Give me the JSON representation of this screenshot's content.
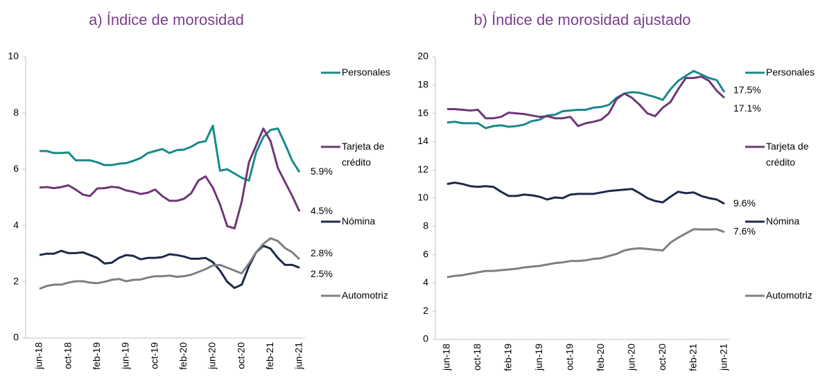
{
  "chart_data": [
    {
      "type": "line",
      "title": "a) Índice de morosidad",
      "categories": [
        "jun-18",
        null,
        null,
        null,
        "oct-18",
        null,
        null,
        null,
        "feb-19",
        null,
        null,
        null,
        "jun-19",
        null,
        null,
        null,
        "oct-19",
        null,
        null,
        null,
        "feb-20",
        null,
        null,
        null,
        "jun-20",
        null,
        null,
        null,
        "oct-20",
        null,
        null,
        null,
        "feb-21",
        null,
        null,
        null,
        "jun-21"
      ],
      "ylim": [
        0,
        10
      ],
      "yticks": [
        0,
        2,
        4,
        6,
        8,
        10
      ],
      "series": [
        {
          "name": "Personales",
          "color": "#17898a",
          "values": [
            6.65,
            6.65,
            6.58,
            6.58,
            6.6,
            6.32,
            6.32,
            6.32,
            6.25,
            6.15,
            6.15,
            6.2,
            6.22,
            6.3,
            6.4,
            6.58,
            6.65,
            6.72,
            6.58,
            6.68,
            6.7,
            6.8,
            6.95,
            7.0,
            7.55,
            5.95,
            6.0,
            5.85,
            5.7,
            5.6,
            6.6,
            7.15,
            7.4,
            7.45,
            6.9,
            6.3,
            5.9
          ],
          "value_labels": [
            null,
            null,
            null,
            null,
            null,
            null,
            null,
            null,
            null,
            null,
            null,
            null,
            null,
            null,
            null,
            null,
            null,
            null,
            null,
            null,
            null,
            null,
            null,
            null,
            null,
            null,
            null,
            null,
            null,
            null,
            null,
            null,
            null,
            null,
            null,
            null,
            "5.9%"
          ]
        },
        {
          "name": "Tarjeta de crédito",
          "color": "#6e3775",
          "values": [
            5.35,
            5.37,
            5.33,
            5.37,
            5.43,
            5.28,
            5.1,
            5.05,
            5.32,
            5.33,
            5.38,
            5.35,
            5.25,
            5.2,
            5.12,
            5.17,
            5.28,
            5.05,
            4.88,
            4.88,
            4.95,
            5.15,
            5.6,
            5.75,
            5.35,
            4.75,
            3.98,
            3.9,
            4.85,
            6.25,
            6.85,
            7.45,
            7.0,
            6.05,
            5.55,
            5.05,
            4.5
          ],
          "value_labels": [
            null,
            null,
            null,
            null,
            null,
            null,
            null,
            null,
            null,
            null,
            null,
            null,
            null,
            null,
            null,
            null,
            null,
            null,
            null,
            null,
            null,
            null,
            null,
            null,
            null,
            null,
            null,
            null,
            null,
            null,
            null,
            null,
            null,
            null,
            null,
            null,
            "4.5%"
          ]
        },
        {
          "name": "Nómina",
          "color": "#1c2a47",
          "values": [
            2.95,
            3.0,
            3.0,
            3.1,
            3.02,
            3.02,
            3.05,
            2.95,
            2.85,
            2.65,
            2.68,
            2.85,
            2.95,
            2.92,
            2.8,
            2.85,
            2.85,
            2.88,
            2.98,
            2.95,
            2.9,
            2.82,
            2.82,
            2.85,
            2.7,
            2.4,
            2.0,
            1.78,
            1.9,
            2.55,
            3.05,
            3.28,
            3.18,
            2.85,
            2.6,
            2.6,
            2.5
          ],
          "value_labels": [
            null,
            null,
            null,
            null,
            null,
            null,
            null,
            null,
            null,
            null,
            null,
            null,
            null,
            null,
            null,
            null,
            null,
            null,
            null,
            null,
            null,
            null,
            null,
            null,
            null,
            null,
            null,
            null,
            null,
            null,
            null,
            null,
            null,
            null,
            null,
            null,
            "2.5%"
          ]
        },
        {
          "name": "Automotriz",
          "color": "#7f7f7f",
          "values": [
            1.75,
            1.85,
            1.9,
            1.9,
            1.97,
            2.02,
            2.02,
            1.97,
            1.95,
            2.0,
            2.07,
            2.1,
            2.02,
            2.07,
            2.08,
            2.15,
            2.2,
            2.2,
            2.22,
            2.18,
            2.2,
            2.25,
            2.35,
            2.45,
            2.58,
            2.6,
            2.5,
            2.4,
            2.3,
            2.65,
            3.05,
            3.35,
            3.55,
            3.45,
            3.2,
            3.05,
            2.8
          ],
          "value_labels": [
            null,
            null,
            null,
            null,
            null,
            null,
            null,
            null,
            null,
            null,
            null,
            null,
            null,
            null,
            null,
            null,
            null,
            null,
            null,
            null,
            null,
            null,
            null,
            null,
            null,
            null,
            null,
            null,
            null,
            null,
            null,
            null,
            null,
            null,
            null,
            null,
            "2.8%"
          ]
        }
      ]
    },
    {
      "type": "line",
      "title": "b) Índice de morosidad ajustado",
      "categories": [
        "jun-18",
        null,
        null,
        null,
        "oct-18",
        null,
        null,
        null,
        "feb-19",
        null,
        null,
        null,
        "jun-19",
        null,
        null,
        null,
        "oct-19",
        null,
        null,
        null,
        "feb-20",
        null,
        null,
        null,
        "jun-20",
        null,
        null,
        null,
        "oct-20",
        null,
        null,
        null,
        "feb-21",
        null,
        null,
        null,
        "jun-21"
      ],
      "ylim": [
        0,
        20
      ],
      "yticks": [
        0,
        2,
        4,
        6,
        8,
        10,
        12,
        14,
        16,
        18,
        20
      ],
      "series": [
        {
          "name": "Personales",
          "color": "#17898a",
          "values": [
            15.35,
            15.4,
            15.3,
            15.3,
            15.3,
            14.95,
            15.1,
            15.15,
            15.05,
            15.1,
            15.2,
            15.45,
            15.55,
            15.85,
            15.9,
            16.15,
            16.2,
            16.25,
            16.25,
            16.4,
            16.45,
            16.6,
            17.1,
            17.4,
            17.5,
            17.45,
            17.3,
            17.15,
            16.95,
            17.7,
            18.3,
            18.65,
            19.0,
            18.75,
            18.5,
            18.35,
            17.5
          ],
          "value_labels": [
            null,
            null,
            null,
            null,
            null,
            null,
            null,
            null,
            null,
            null,
            null,
            null,
            null,
            null,
            null,
            null,
            null,
            null,
            null,
            null,
            null,
            null,
            null,
            null,
            null,
            null,
            null,
            null,
            null,
            null,
            null,
            null,
            null,
            null,
            null,
            null,
            "17.5%"
          ]
        },
        {
          "name": "Tarjeta de crédito",
          "color": "#6e3775",
          "values": [
            16.3,
            16.3,
            16.25,
            16.2,
            16.25,
            15.65,
            15.65,
            15.75,
            16.05,
            16.0,
            15.95,
            15.85,
            15.75,
            15.8,
            15.65,
            15.65,
            15.75,
            15.1,
            15.3,
            15.4,
            15.55,
            16.0,
            17.0,
            17.4,
            17.1,
            16.6,
            16.0,
            15.8,
            16.4,
            16.8,
            17.7,
            18.5,
            18.5,
            18.6,
            18.3,
            17.6,
            17.1
          ],
          "value_labels": [
            null,
            null,
            null,
            null,
            null,
            null,
            null,
            null,
            null,
            null,
            null,
            null,
            null,
            null,
            null,
            null,
            null,
            null,
            null,
            null,
            null,
            null,
            null,
            null,
            null,
            null,
            null,
            null,
            null,
            null,
            null,
            null,
            null,
            null,
            null,
            null,
            "17.1%"
          ]
        },
        {
          "name": "Nómina",
          "color": "#1c2a47",
          "values": [
            11.0,
            11.1,
            11.0,
            10.85,
            10.8,
            10.85,
            10.8,
            10.45,
            10.15,
            10.15,
            10.25,
            10.2,
            10.1,
            9.9,
            10.05,
            10.0,
            10.25,
            10.3,
            10.3,
            10.3,
            10.4,
            10.5,
            10.55,
            10.6,
            10.65,
            10.35,
            10.0,
            9.8,
            9.7,
            10.1,
            10.45,
            10.35,
            10.4,
            10.15,
            10.0,
            9.9,
            9.6
          ],
          "value_labels": [
            null,
            null,
            null,
            null,
            null,
            null,
            null,
            null,
            null,
            null,
            null,
            null,
            null,
            null,
            null,
            null,
            null,
            null,
            null,
            null,
            null,
            null,
            null,
            null,
            null,
            null,
            null,
            null,
            null,
            null,
            null,
            null,
            null,
            null,
            null,
            null,
            "9.6%"
          ]
        },
        {
          "name": "Automotriz",
          "color": "#7f7f7f",
          "values": [
            4.4,
            4.5,
            4.55,
            4.65,
            4.75,
            4.85,
            4.85,
            4.9,
            4.95,
            5.0,
            5.1,
            5.15,
            5.2,
            5.3,
            5.4,
            5.45,
            5.55,
            5.55,
            5.6,
            5.7,
            5.75,
            5.9,
            6.05,
            6.3,
            6.4,
            6.45,
            6.4,
            6.35,
            6.3,
            6.85,
            7.2,
            7.5,
            7.8,
            7.78,
            7.78,
            7.8,
            7.6
          ],
          "value_labels": [
            null,
            null,
            null,
            null,
            null,
            null,
            null,
            null,
            null,
            null,
            null,
            null,
            null,
            null,
            null,
            null,
            null,
            null,
            null,
            null,
            null,
            null,
            null,
            null,
            null,
            null,
            null,
            null,
            null,
            null,
            null,
            null,
            null,
            null,
            null,
            null,
            "7.6%"
          ]
        }
      ]
    }
  ]
}
